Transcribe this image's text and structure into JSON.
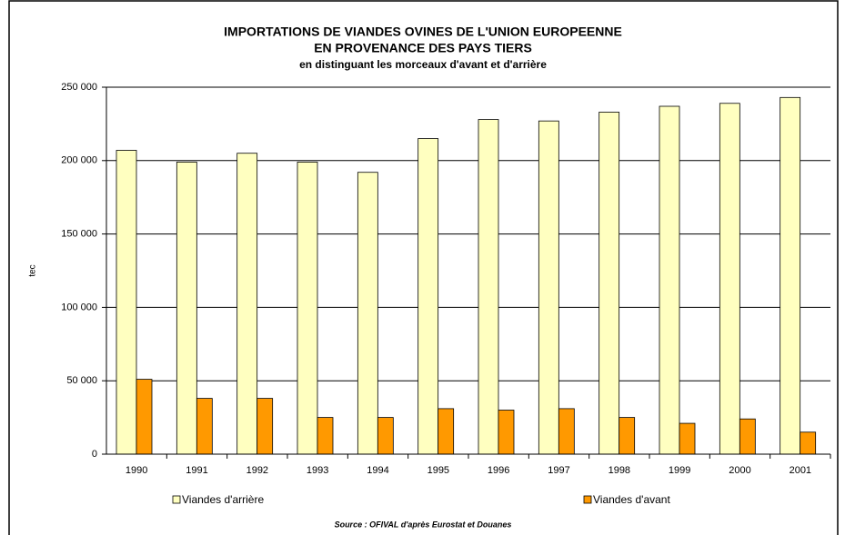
{
  "chart_data": {
    "type": "bar",
    "title": "IMPORTATIONS DE VIANDES OVINES DE L'UNION EUROPEENNE",
    "title_line2": "EN PROVENANCE DES PAYS TIERS",
    "subtitle": "en distinguant les morceaux d'avant et d'arrière",
    "y_label": "tec",
    "source": "Source :  OFIVAL d'après Eurostat et Douanes",
    "categories": [
      "1990",
      "1991",
      "1992",
      "1993",
      "1994",
      "1995",
      "1996",
      "1997",
      "1998",
      "1999",
      "2000",
      "2001"
    ],
    "series": [
      {
        "name": "Viandes d'arrière",
        "color": "#ffffc0",
        "values": [
          207000,
          199000,
          205000,
          199000,
          192000,
          215000,
          228000,
          227000,
          233000,
          237000,
          239000,
          243000
        ]
      },
      {
        "name": "Viandes d'avant",
        "color": "#ff9900",
        "values": [
          51000,
          38000,
          38000,
          25000,
          25000,
          31000,
          30000,
          31000,
          25000,
          21000,
          24000,
          15000
        ]
      }
    ],
    "ylim": [
      0,
      250000
    ],
    "yticks": [
      0,
      {
        "value": 50000,
        "label": "50 000"
      },
      {
        "value": 100000,
        "label": "100 000"
      },
      {
        "value": 150000,
        "label": "150 000"
      },
      {
        "value": 200000,
        "label": "200 000"
      },
      {
        "value": 250000,
        "label": "250 000"
      }
    ],
    "grid": true
  }
}
